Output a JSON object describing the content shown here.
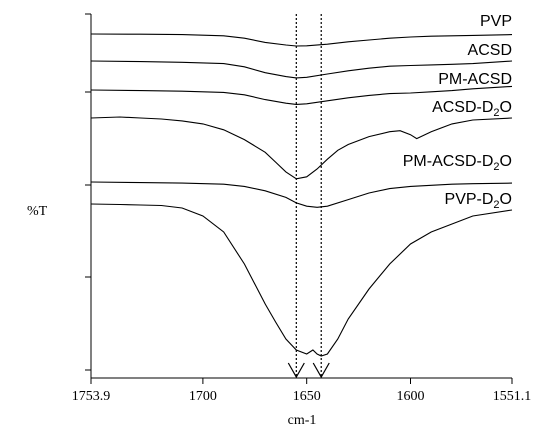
{
  "chart_data": {
    "type": "line",
    "title": "",
    "xlabel": "cm-1",
    "ylabel": "%T",
    "x_reversed": true,
    "xlim": [
      1753.9,
      1551.1
    ],
    "x_ticks": [
      {
        "value": 1753.9,
        "label": "1753.9"
      },
      {
        "value": 1700,
        "label": "1700"
      },
      {
        "value": 1650,
        "label": "1650"
      },
      {
        "value": 1600,
        "label": "1600"
      },
      {
        "value": 1551.1,
        "label": "1551.1"
      }
    ],
    "y_tick_labels_shown": false,
    "grid": false,
    "legend": "labels placed at the right end of each trace",
    "reference_lines": [
      {
        "x": 1655,
        "style": "dotted",
        "marker": "arrow"
      },
      {
        "x": 1643,
        "style": "dotted",
        "marker": "arrow"
      }
    ],
    "series": [
      {
        "name": "PVP",
        "label_main": "PVP",
        "label_sub": "",
        "label_tail": "",
        "x": [
          1753.9,
          1730,
          1710,
          1690,
          1680,
          1670,
          1660,
          1655,
          1650,
          1640,
          1630,
          1620,
          1610,
          1600,
          1590,
          1580,
          1570,
          1551.1
        ],
        "y": [
          0.0,
          0.2,
          0.5,
          1.5,
          3.5,
          7.0,
          9.2,
          10.0,
          9.8,
          8.5,
          6.5,
          5.0,
          3.5,
          2.5,
          1.8,
          1.5,
          1.2,
          0.5
        ]
      },
      {
        "name": "ACSD",
        "label_main": "ACSD",
        "label_sub": "",
        "label_tail": "",
        "x": [
          1753.9,
          1730,
          1710,
          1690,
          1680,
          1670,
          1660,
          1655,
          1650,
          1640,
          1630,
          1620,
          1610,
          1600,
          1590,
          1580,
          1570,
          1551.1
        ],
        "y": [
          0.0,
          0.5,
          1.0,
          2.0,
          4.5,
          9.0,
          12.0,
          13.0,
          12.5,
          10.0,
          7.5,
          5.5,
          4.0,
          3.5,
          3.0,
          2.5,
          2.0,
          0.0
        ]
      },
      {
        "name": "PM-ACSD",
        "label_main": "PM-ACSD",
        "label_sub": "",
        "label_tail": "",
        "x": [
          1753.9,
          1730,
          1710,
          1690,
          1680,
          1670,
          1660,
          1655,
          1650,
          1640,
          1630,
          1620,
          1610,
          1600,
          1590,
          1580,
          1570,
          1551.1
        ],
        "y": [
          0.0,
          0.5,
          1.0,
          2.0,
          4.0,
          8.0,
          11.0,
          12.0,
          11.5,
          9.0,
          6.5,
          4.5,
          3.0,
          2.5,
          1.5,
          0.5,
          -1.0,
          -3.0
        ]
      },
      {
        "name": "ACSD-D2O",
        "label_main": "ACSD-D",
        "label_sub": "2",
        "label_tail": "O",
        "x": [
          1753.9,
          1740,
          1730,
          1720,
          1710,
          1700,
          1690,
          1680,
          1670,
          1665,
          1660,
          1655,
          1650,
          1645,
          1640,
          1635,
          1630,
          1620,
          1610,
          1605,
          1600,
          1597,
          1590,
          1580,
          1570,
          1551.1
        ],
        "y": [
          0.0,
          -1.0,
          0.0,
          1.0,
          3.0,
          6.0,
          12.0,
          22.0,
          35.0,
          45.0,
          55.0,
          62.0,
          60.0,
          52.0,
          42.0,
          33.0,
          27.0,
          19.0,
          14.0,
          13.0,
          17.0,
          21.0,
          14.0,
          6.0,
          2.0,
          0.0
        ]
      },
      {
        "name": "PM-ACSD-D2O",
        "label_main": "PM-ACSD-D",
        "label_sub": "2",
        "label_tail": "O",
        "x": [
          1753.9,
          1730,
          1710,
          1690,
          1680,
          1670,
          1660,
          1655,
          1650,
          1645,
          1640,
          1630,
          1620,
          1610,
          1600,
          1590,
          1580,
          1570,
          1551.1
        ],
        "y": [
          0.0,
          0.5,
          1.0,
          2.0,
          4.0,
          8.0,
          14.0,
          19.0,
          22.0,
          23.0,
          22.0,
          16.0,
          10.0,
          6.0,
          4.0,
          3.0,
          2.0,
          1.5,
          1.0
        ]
      },
      {
        "name": "PVP-D2O",
        "label_main": "PVP-D",
        "label_sub": "2",
        "label_tail": "O",
        "x": [
          1753.9,
          1740,
          1730,
          1720,
          1710,
          1700,
          1690,
          1680,
          1670,
          1665,
          1660,
          1655,
          1650,
          1647,
          1645,
          1643,
          1640,
          1635,
          1630,
          1620,
          1610,
          1600,
          1590,
          1580,
          1570,
          1551.1
        ],
        "y": [
          0.0,
          0.5,
          1.0,
          1.5,
          4.0,
          12.0,
          28.0,
          60.0,
          100.0,
          118.0,
          135.0,
          146.0,
          150.0,
          146.0,
          150.0,
          152.0,
          150.0,
          135.0,
          115.0,
          85.0,
          60.0,
          40.0,
          28.0,
          20.0,
          12.0,
          6.0
        ]
      }
    ]
  }
}
